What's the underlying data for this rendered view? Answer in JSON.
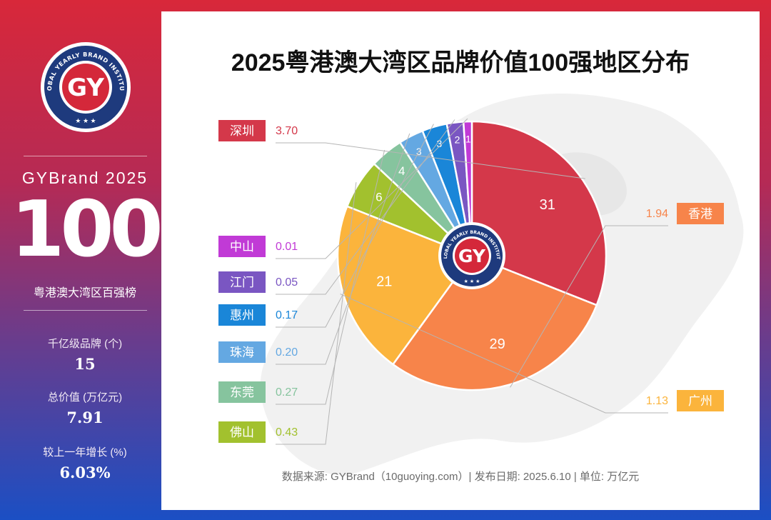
{
  "sidebar": {
    "brand_year": "GYBrand 2025",
    "big_number": "100",
    "subtitle": "粤港澳大湾区百强榜",
    "stats": [
      {
        "label": "千亿级品牌 (个)",
        "value": "15"
      },
      {
        "label": "总价值 (万亿元)",
        "value": "7.91"
      },
      {
        "label": "较上一年增长 (%)",
        "value": "6.03%"
      }
    ],
    "logo": {
      "text": "GY",
      "ring_text": "GLOBAL YEARLY BRAND INSTITUTE"
    }
  },
  "title": "2025粤港澳大湾区品牌价值100强地区分布",
  "footer": "数据来源: GYBrand（10guoying.com）| 发布日期: 2025.6.10 | 单位: 万亿元",
  "chart_data": {
    "type": "pie",
    "title": "2025粤港澳大湾区品牌价值100强地区分布",
    "unit": "万亿元",
    "slices": [
      {
        "region": "深圳",
        "count": 31,
        "value": "3.70",
        "color": "#d4384a"
      },
      {
        "region": "香港",
        "count": 29,
        "value": "1.94",
        "color": "#f7844a"
      },
      {
        "region": "广州",
        "count": 21,
        "value": "1.13",
        "color": "#fbb43c"
      },
      {
        "region": "佛山",
        "count": 6,
        "value": "0.43",
        "color": "#a2c12e"
      },
      {
        "region": "东莞",
        "count": 4,
        "value": "0.27",
        "color": "#86c49e"
      },
      {
        "region": "珠海",
        "count": 3,
        "value": "0.20",
        "color": "#64a8e2"
      },
      {
        "region": "惠州",
        "count": 3,
        "value": "0.17",
        "color": "#1a86d8"
      },
      {
        "region": "江门",
        "count": 2,
        "value": "0.05",
        "color": "#7a56c2"
      },
      {
        "region": "中山",
        "count": 1,
        "value": "0.01",
        "color": "#c13ad6"
      }
    ]
  }
}
